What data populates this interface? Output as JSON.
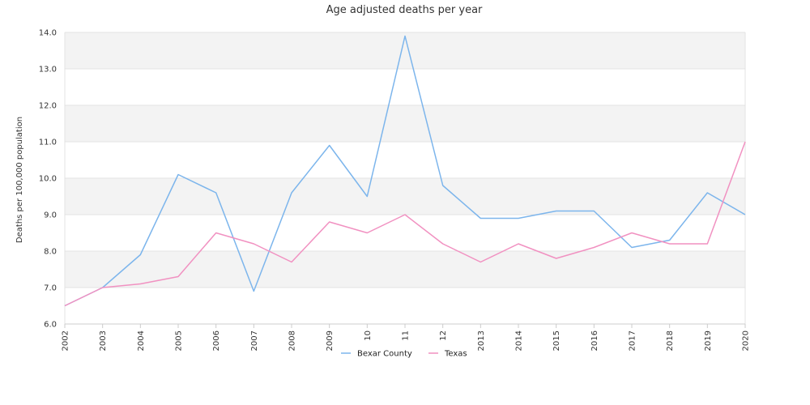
{
  "chart_data": {
    "type": "line",
    "title": "Age adjusted deaths per year",
    "xlabel": "",
    "ylabel": "Deaths per 100,000 population",
    "x": [
      "2002",
      "2003",
      "2004",
      "2005",
      "2006",
      "2007",
      "2008",
      "2009",
      "10",
      "11",
      "12",
      "2013",
      "2014",
      "2015",
      "2016",
      "2017",
      "2018",
      "2019",
      "2020"
    ],
    "y_ticks": [
      "6.0",
      "7.0",
      "8.0",
      "9.0",
      "10.0",
      "11.0",
      "12.0",
      "13.0",
      "14.0"
    ],
    "ylim": [
      6.0,
      14.0
    ],
    "grid": "horizontal bands",
    "legend_position": "bottom",
    "series": [
      {
        "name": "Bexar County",
        "color": "#7cb5ec",
        "values": [
          6.5,
          7.0,
          7.9,
          10.1,
          9.6,
          6.9,
          9.6,
          10.9,
          9.5,
          13.9,
          9.8,
          8.9,
          8.9,
          9.1,
          9.1,
          8.1,
          8.3,
          9.6,
          9.0
        ]
      },
      {
        "name": "Texas",
        "color": "#f191c1",
        "values": [
          6.5,
          7.0,
          7.1,
          7.3,
          8.5,
          8.2,
          7.7,
          8.8,
          8.5,
          9.0,
          8.2,
          7.7,
          8.2,
          7.8,
          8.1,
          8.5,
          8.2,
          8.2,
          11.0
        ]
      }
    ]
  }
}
